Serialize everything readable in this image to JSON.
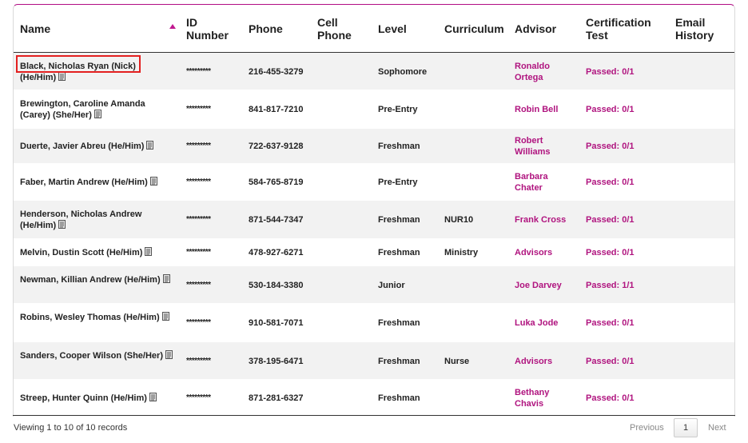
{
  "table": {
    "headers": {
      "name": "Name",
      "id_number": "ID Number",
      "phone": "Phone",
      "cell_phone": "Cell Phone",
      "level": "Level",
      "curriculum": "Curriculum",
      "advisor": "Advisor",
      "certification_test": "Certification Test",
      "email_history": "Email History"
    },
    "sort": {
      "column": "name",
      "direction": "ascending"
    },
    "rows": [
      {
        "name": "Black, Nicholas Ryan (Nick) (He/Him)",
        "id": "*********",
        "phone": "216-455-3279",
        "cell_phone": "",
        "level": "Sophomore",
        "curriculum": "",
        "advisor": "Ronaldo Ortega",
        "certification": "Passed: 0/1",
        "email_history": ""
      },
      {
        "name": "Brewington, Caroline Amanda (Carey) (She/Her)",
        "id": "*********",
        "phone": "841-817-7210",
        "cell_phone": "",
        "level": "Pre-Entry",
        "curriculum": "",
        "advisor": "Robin Bell",
        "certification": "Passed: 0/1",
        "email_history": ""
      },
      {
        "name": "Duerte, Javier Abreu (He/Him)",
        "id": "*********",
        "phone": "722-637-9128",
        "cell_phone": "",
        "level": "Freshman",
        "curriculum": "",
        "advisor": "Robert Williams",
        "certification": "Passed: 0/1",
        "email_history": ""
      },
      {
        "name": "Faber, Martin Andrew (He/Him)",
        "id": "*********",
        "phone": "584-765-8719",
        "cell_phone": "",
        "level": "Pre-Entry",
        "curriculum": "",
        "advisor": "Barbara Chater",
        "certification": "Passed: 0/1",
        "email_history": ""
      },
      {
        "name": "Henderson, Nicholas Andrew (He/Him)",
        "id": "*********",
        "phone": "871-544-7347",
        "cell_phone": "",
        "level": "Freshman",
        "curriculum": "NUR10",
        "advisor": "Frank Cross",
        "certification": "Passed: 0/1",
        "email_history": ""
      },
      {
        "name": "Melvin, Dustin Scott (He/Him)",
        "id": "*********",
        "phone": "478-927-6271",
        "cell_phone": "",
        "level": "Freshman",
        "curriculum": "Ministry",
        "advisor": "Advisors",
        "certification": "Passed: 0/1",
        "email_history": ""
      },
      {
        "name": "Newman, Killian Andrew (He/Him)",
        "id": "*********",
        "phone": "530-184-3380",
        "cell_phone": "",
        "level": "Junior",
        "curriculum": "",
        "advisor": "Joe Darvey",
        "certification": "Passed: 1/1",
        "email_history": ""
      },
      {
        "name": "Robins, Wesley Thomas (He/Him)",
        "id": "*********",
        "phone": "910-581-7071",
        "cell_phone": "",
        "level": "Freshman",
        "curriculum": "",
        "advisor": "Luka Jode",
        "certification": "Passed: 0/1",
        "email_history": ""
      },
      {
        "name": "Sanders, Cooper Wilson (She/Her)",
        "id": "*********",
        "phone": "378-195-6471",
        "cell_phone": "",
        "level": "Freshman",
        "curriculum": "Nurse",
        "advisor": "Advisors",
        "certification": "Passed: 0/1",
        "email_history": ""
      },
      {
        "name": "Streep, Hunter Quinn (He/Him)",
        "id": "*********",
        "phone": "871-281-6327",
        "cell_phone": "",
        "level": "Freshman",
        "curriculum": "",
        "advisor": "Bethany Chavis",
        "certification": "Passed: 0/1",
        "email_history": ""
      }
    ]
  },
  "footer": {
    "info": "Viewing 1 to 10 of 10 records",
    "previous": "Previous",
    "page": "1",
    "next": "Next"
  },
  "icons": {
    "row_note": "document-icon",
    "sort": "sort-ascending-icon"
  },
  "colors": {
    "accent": "#b0147f",
    "highlight_border": "#e32020",
    "alt_row": "#f2f2f2"
  }
}
